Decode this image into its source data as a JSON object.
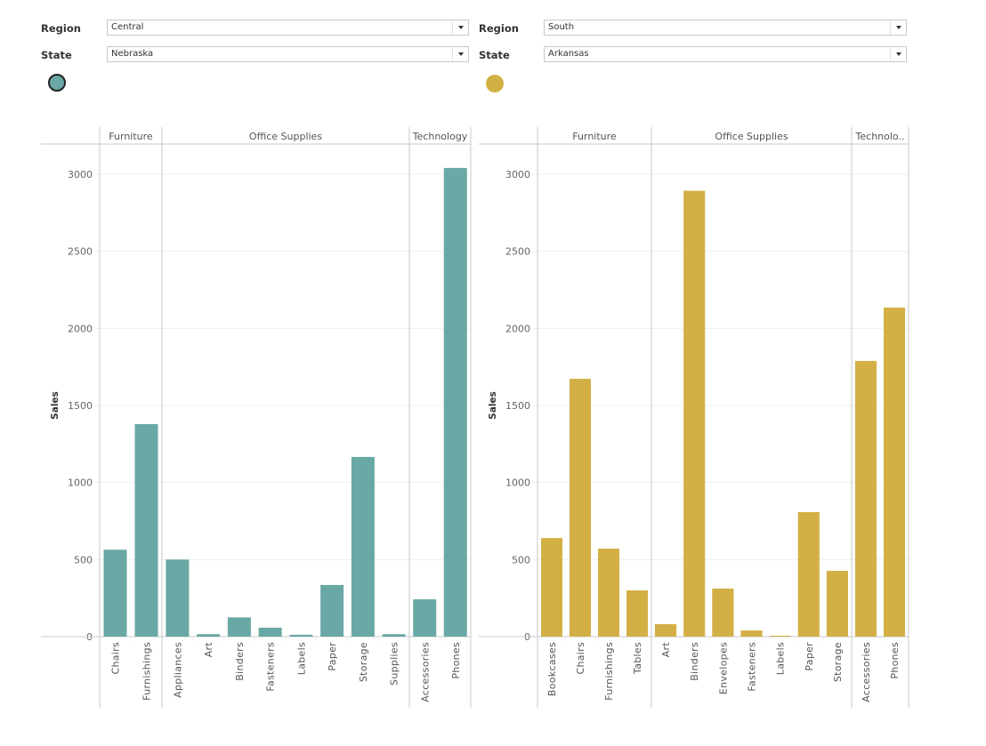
{
  "filters": [
    {
      "region_label": "Region",
      "region_value": "Central",
      "state_label": "State",
      "state_value": "Nebraska",
      "legend_color": "#69A8A4",
      "legend_outline": "#222222"
    },
    {
      "region_label": "Region",
      "region_value": "South",
      "state_label": "State",
      "state_value": "Arkansas",
      "legend_color": "#D3B046",
      "legend_outline": "none"
    }
  ],
  "chart_data": [
    {
      "type": "bar",
      "title": "Central / Nebraska",
      "ylabel": "Sales",
      "xlabel": "",
      "ylim": [
        0,
        3000
      ],
      "yticks": [
        0,
        500,
        1000,
        1500,
        2000,
        2500,
        3000
      ],
      "grid": true,
      "color": "#69A8A4",
      "groups": [
        {
          "name": "Furniture",
          "categories": [
            "Chairs",
            "Furnishings"
          ],
          "values": [
            564,
            1379
          ]
        },
        {
          "name": "Office Supplies",
          "categories": [
            "Appliances",
            "Art",
            "Binders",
            "Fasteners",
            "Labels",
            "Paper",
            "Storage",
            "Supplies"
          ],
          "values": [
            500,
            16,
            125,
            58,
            12,
            335,
            1166,
            16
          ]
        },
        {
          "name": "Technology",
          "categories": [
            "Accessories",
            "Phones"
          ],
          "values": [
            242,
            3041
          ]
        }
      ]
    },
    {
      "type": "bar",
      "title": "South / Arkansas",
      "ylabel": "Sales",
      "xlabel": "",
      "ylim": [
        0,
        3000
      ],
      "yticks": [
        0,
        500,
        1000,
        1500,
        2000,
        2500,
        3000
      ],
      "grid": true,
      "color": "#D3B046",
      "groups": [
        {
          "name": "Furniture",
          "categories": [
            "Bookcases",
            "Chairs",
            "Furnishings",
            "Tables"
          ],
          "values": [
            640,
            1673,
            571,
            300
          ]
        },
        {
          "name": "Office Supplies",
          "categories": [
            "Art",
            "Binders",
            "Envelopes",
            "Fasteners",
            "Labels",
            "Paper",
            "Storage"
          ],
          "values": [
            81,
            2893,
            312,
            40,
            6,
            808,
            427
          ]
        },
        {
          "name": "Technolo..",
          "categories": [
            "Accessories",
            "Phones"
          ],
          "values": [
            1789,
            2135
          ]
        }
      ]
    }
  ]
}
